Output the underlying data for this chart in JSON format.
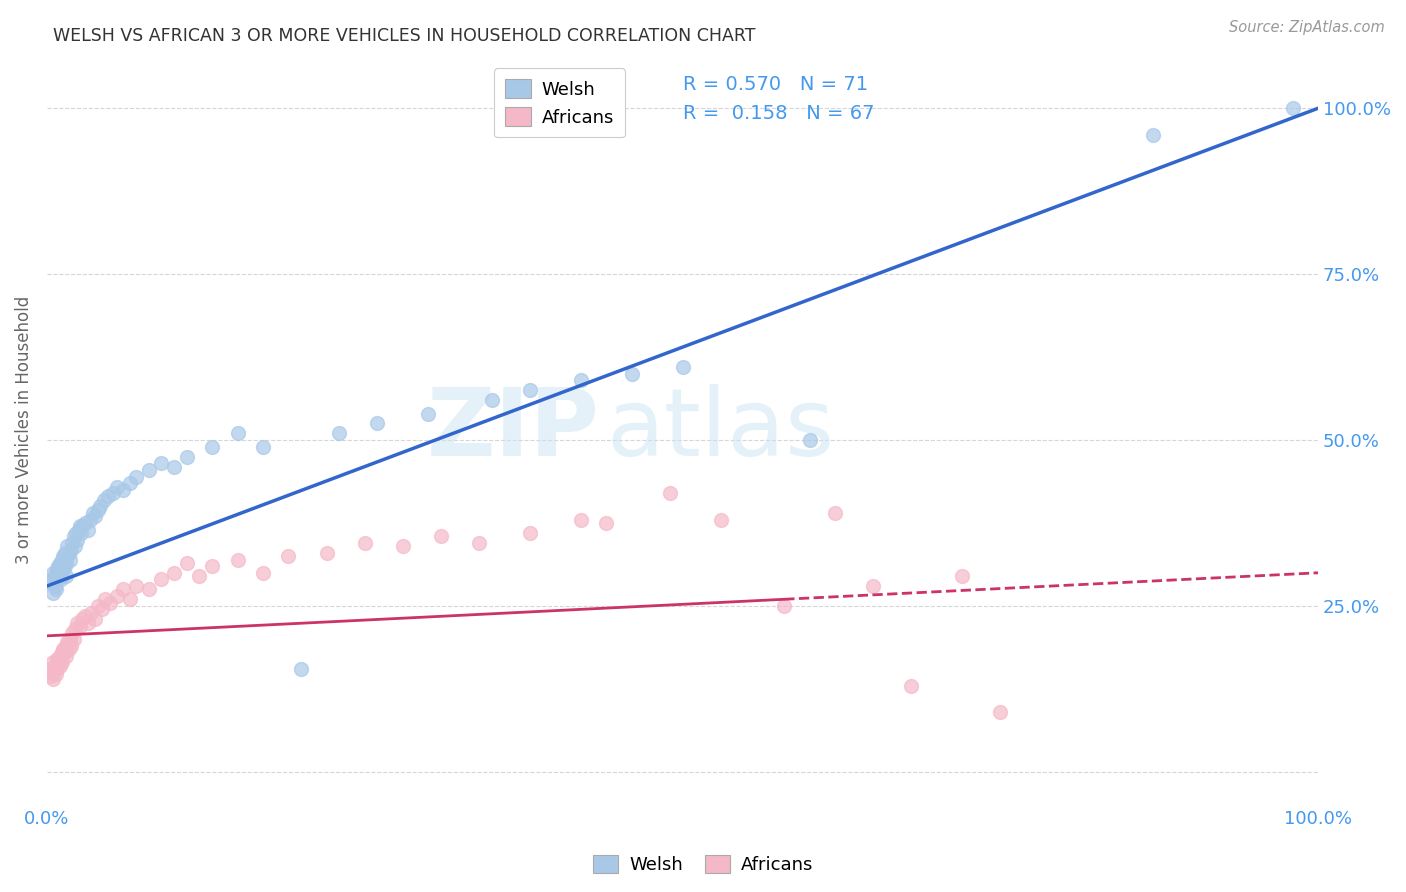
{
  "title": "WELSH VS AFRICAN 3 OR MORE VEHICLES IN HOUSEHOLD CORRELATION CHART",
  "source": "Source: ZipAtlas.com",
  "ylabel": "3 or more Vehicles in Household",
  "legend_welsh": "Welsh",
  "legend_africans": "Africans",
  "welsh_R": "0.570",
  "welsh_N": "71",
  "african_R": "0.158",
  "african_N": "67",
  "welsh_color": "#a8c8e8",
  "african_color": "#f4b8c8",
  "welsh_line_color": "#3366cc",
  "african_line_color": "#cc3366",
  "watermark_zip": "ZIP",
  "watermark_atlas": "atlas",
  "background_color": "#ffffff",
  "welsh_scatter_x": [
    0.003,
    0.004,
    0.005,
    0.005,
    0.006,
    0.006,
    0.007,
    0.007,
    0.008,
    0.008,
    0.009,
    0.009,
    0.01,
    0.01,
    0.011,
    0.011,
    0.012,
    0.012,
    0.013,
    0.013,
    0.014,
    0.014,
    0.015,
    0.015,
    0.016,
    0.016,
    0.017,
    0.018,
    0.019,
    0.02,
    0.021,
    0.022,
    0.023,
    0.024,
    0.025,
    0.026,
    0.027,
    0.028,
    0.03,
    0.032,
    0.034,
    0.036,
    0.038,
    0.04,
    0.042,
    0.045,
    0.048,
    0.052,
    0.055,
    0.06,
    0.065,
    0.07,
    0.08,
    0.09,
    0.1,
    0.11,
    0.13,
    0.15,
    0.17,
    0.2,
    0.23,
    0.26,
    0.3,
    0.35,
    0.38,
    0.42,
    0.46,
    0.5,
    0.6,
    0.87,
    0.98
  ],
  "welsh_scatter_y": [
    0.285,
    0.29,
    0.27,
    0.3,
    0.28,
    0.295,
    0.275,
    0.3,
    0.29,
    0.305,
    0.295,
    0.31,
    0.3,
    0.315,
    0.31,
    0.29,
    0.32,
    0.295,
    0.305,
    0.325,
    0.31,
    0.33,
    0.315,
    0.295,
    0.325,
    0.34,
    0.33,
    0.32,
    0.335,
    0.345,
    0.355,
    0.34,
    0.36,
    0.35,
    0.365,
    0.37,
    0.36,
    0.37,
    0.375,
    0.365,
    0.38,
    0.39,
    0.385,
    0.395,
    0.4,
    0.41,
    0.415,
    0.42,
    0.43,
    0.425,
    0.435,
    0.445,
    0.455,
    0.465,
    0.46,
    0.475,
    0.49,
    0.51,
    0.49,
    0.155,
    0.51,
    0.525,
    0.54,
    0.56,
    0.575,
    0.59,
    0.6,
    0.61,
    0.5,
    0.96,
    1.0
  ],
  "african_scatter_x": [
    0.002,
    0.003,
    0.004,
    0.005,
    0.005,
    0.006,
    0.007,
    0.007,
    0.008,
    0.008,
    0.009,
    0.01,
    0.01,
    0.011,
    0.012,
    0.012,
    0.013,
    0.014,
    0.015,
    0.015,
    0.016,
    0.017,
    0.018,
    0.019,
    0.02,
    0.021,
    0.022,
    0.024,
    0.026,
    0.028,
    0.03,
    0.032,
    0.035,
    0.038,
    0.04,
    0.043,
    0.046,
    0.05,
    0.055,
    0.06,
    0.065,
    0.07,
    0.08,
    0.09,
    0.1,
    0.11,
    0.12,
    0.13,
    0.15,
    0.17,
    0.19,
    0.22,
    0.25,
    0.28,
    0.31,
    0.34,
    0.38,
    0.42,
    0.44,
    0.49,
    0.53,
    0.58,
    0.62,
    0.65,
    0.68,
    0.72,
    0.75
  ],
  "african_scatter_y": [
    0.155,
    0.145,
    0.15,
    0.165,
    0.14,
    0.155,
    0.16,
    0.148,
    0.17,
    0.155,
    0.165,
    0.175,
    0.16,
    0.175,
    0.18,
    0.165,
    0.185,
    0.18,
    0.19,
    0.175,
    0.195,
    0.185,
    0.2,
    0.19,
    0.21,
    0.2,
    0.215,
    0.225,
    0.22,
    0.23,
    0.235,
    0.225,
    0.24,
    0.23,
    0.25,
    0.245,
    0.26,
    0.255,
    0.265,
    0.275,
    0.26,
    0.28,
    0.275,
    0.29,
    0.3,
    0.315,
    0.295,
    0.31,
    0.32,
    0.3,
    0.325,
    0.33,
    0.345,
    0.34,
    0.355,
    0.345,
    0.36,
    0.38,
    0.375,
    0.42,
    0.38,
    0.25,
    0.39,
    0.28,
    0.13,
    0.295,
    0.09
  ],
  "xlim": [
    0.0,
    1.0
  ],
  "ylim": [
    -0.05,
    1.08
  ],
  "welsh_line_x": [
    0.0,
    1.0
  ],
  "welsh_line_y": [
    0.28,
    1.0
  ],
  "african_line_x": [
    0.0,
    1.0
  ],
  "african_line_y": [
    0.205,
    0.3
  ]
}
